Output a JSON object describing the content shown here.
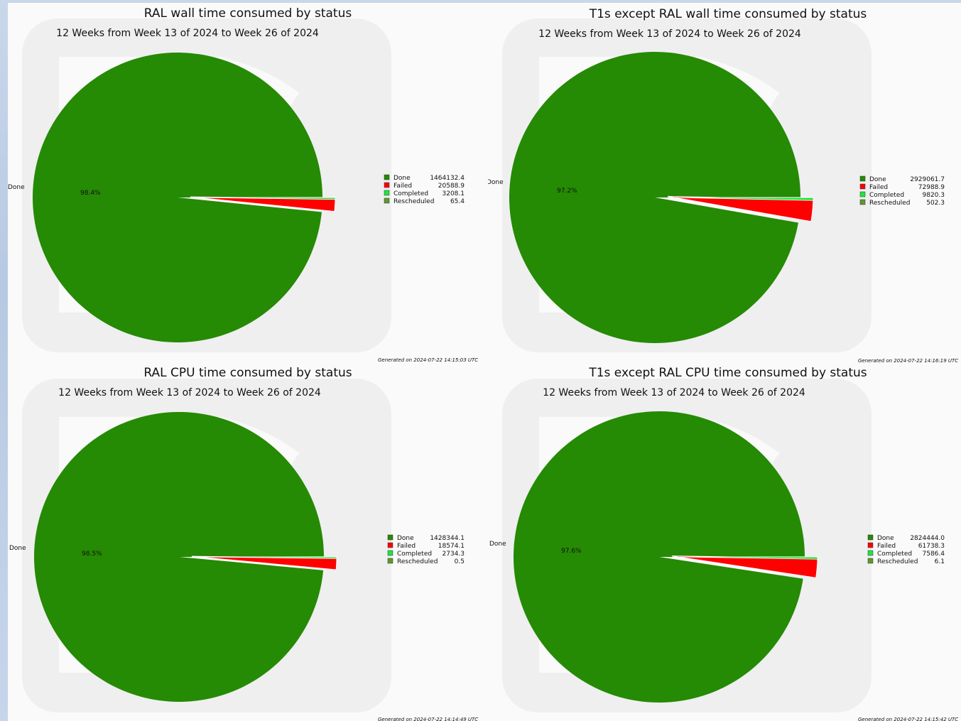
{
  "colors": {
    "done": "#258a04",
    "failed": "#ff0000",
    "completed": "#1ee63c",
    "rescheduled": "#5c9a28",
    "watermark": "#efefef"
  },
  "chart_data": [
    {
      "type": "pie",
      "title": "RAL wall time consumed by status",
      "subtitle": "12 Weeks from Week 13 of 2024 to Week 26 of 2024",
      "categories": [
        "Done",
        "Failed",
        "Completed",
        "Rescheduled"
      ],
      "values": [
        1464132.4,
        20588.9,
        3208.1,
        65.4
      ],
      "value_labels": [
        "1464132.4",
        "20588.9",
        "3208.1",
        "65.4"
      ],
      "pct_label": "98.4%",
      "slice_label": "Done",
      "footer": "Generated on 2024-07-22 14:15:03 UTC",
      "legend": "right"
    },
    {
      "type": "pie",
      "title": "T1s except RAL wall time consumed by status",
      "subtitle": "12 Weeks from Week 13 of 2024 to Week 26 of 2024",
      "categories": [
        "Done",
        "Failed",
        "Completed",
        "Rescheduled"
      ],
      "values": [
        2929061.7,
        72988.9,
        9820.3,
        502.3
      ],
      "value_labels": [
        "2929061.7",
        "72988.9",
        "9820.3",
        "502.3"
      ],
      "pct_label": "97.2%",
      "slice_label": "Done",
      "footer": "Generated on 2024-07-22 14:16:19 UTC",
      "legend": "right"
    },
    {
      "type": "pie",
      "title": "RAL CPU time consumed by status",
      "subtitle": "12 Weeks from Week 13 of 2024 to Week 26 of 2024",
      "categories": [
        "Done",
        "Failed",
        "Completed",
        "Rescheduled"
      ],
      "values": [
        1428344.1,
        18574.1,
        2734.3,
        0.5
      ],
      "value_labels": [
        "1428344.1",
        "18574.1",
        "2734.3",
        "0.5"
      ],
      "pct_label": "98.5%",
      "slice_label": "Done",
      "footer": "Generated on 2024-07-22 14:14:49 UTC",
      "legend": "right"
    },
    {
      "type": "pie",
      "title": "T1s except RAL CPU time consumed by status",
      "subtitle": "12 Weeks from Week 13 of 2024 to Week 26 of 2024",
      "categories": [
        "Done",
        "Failed",
        "Completed",
        "Rescheduled"
      ],
      "values": [
        2824444.0,
        61738.3,
        7586.4,
        6.1
      ],
      "value_labels": [
        "2824444.0",
        "61738.3",
        "7586.4",
        "6.1"
      ],
      "pct_label": "97.6%",
      "slice_label": "Done",
      "footer": "Generated on 2024-07-22 14:15:42 UTC",
      "legend": "right"
    }
  ]
}
